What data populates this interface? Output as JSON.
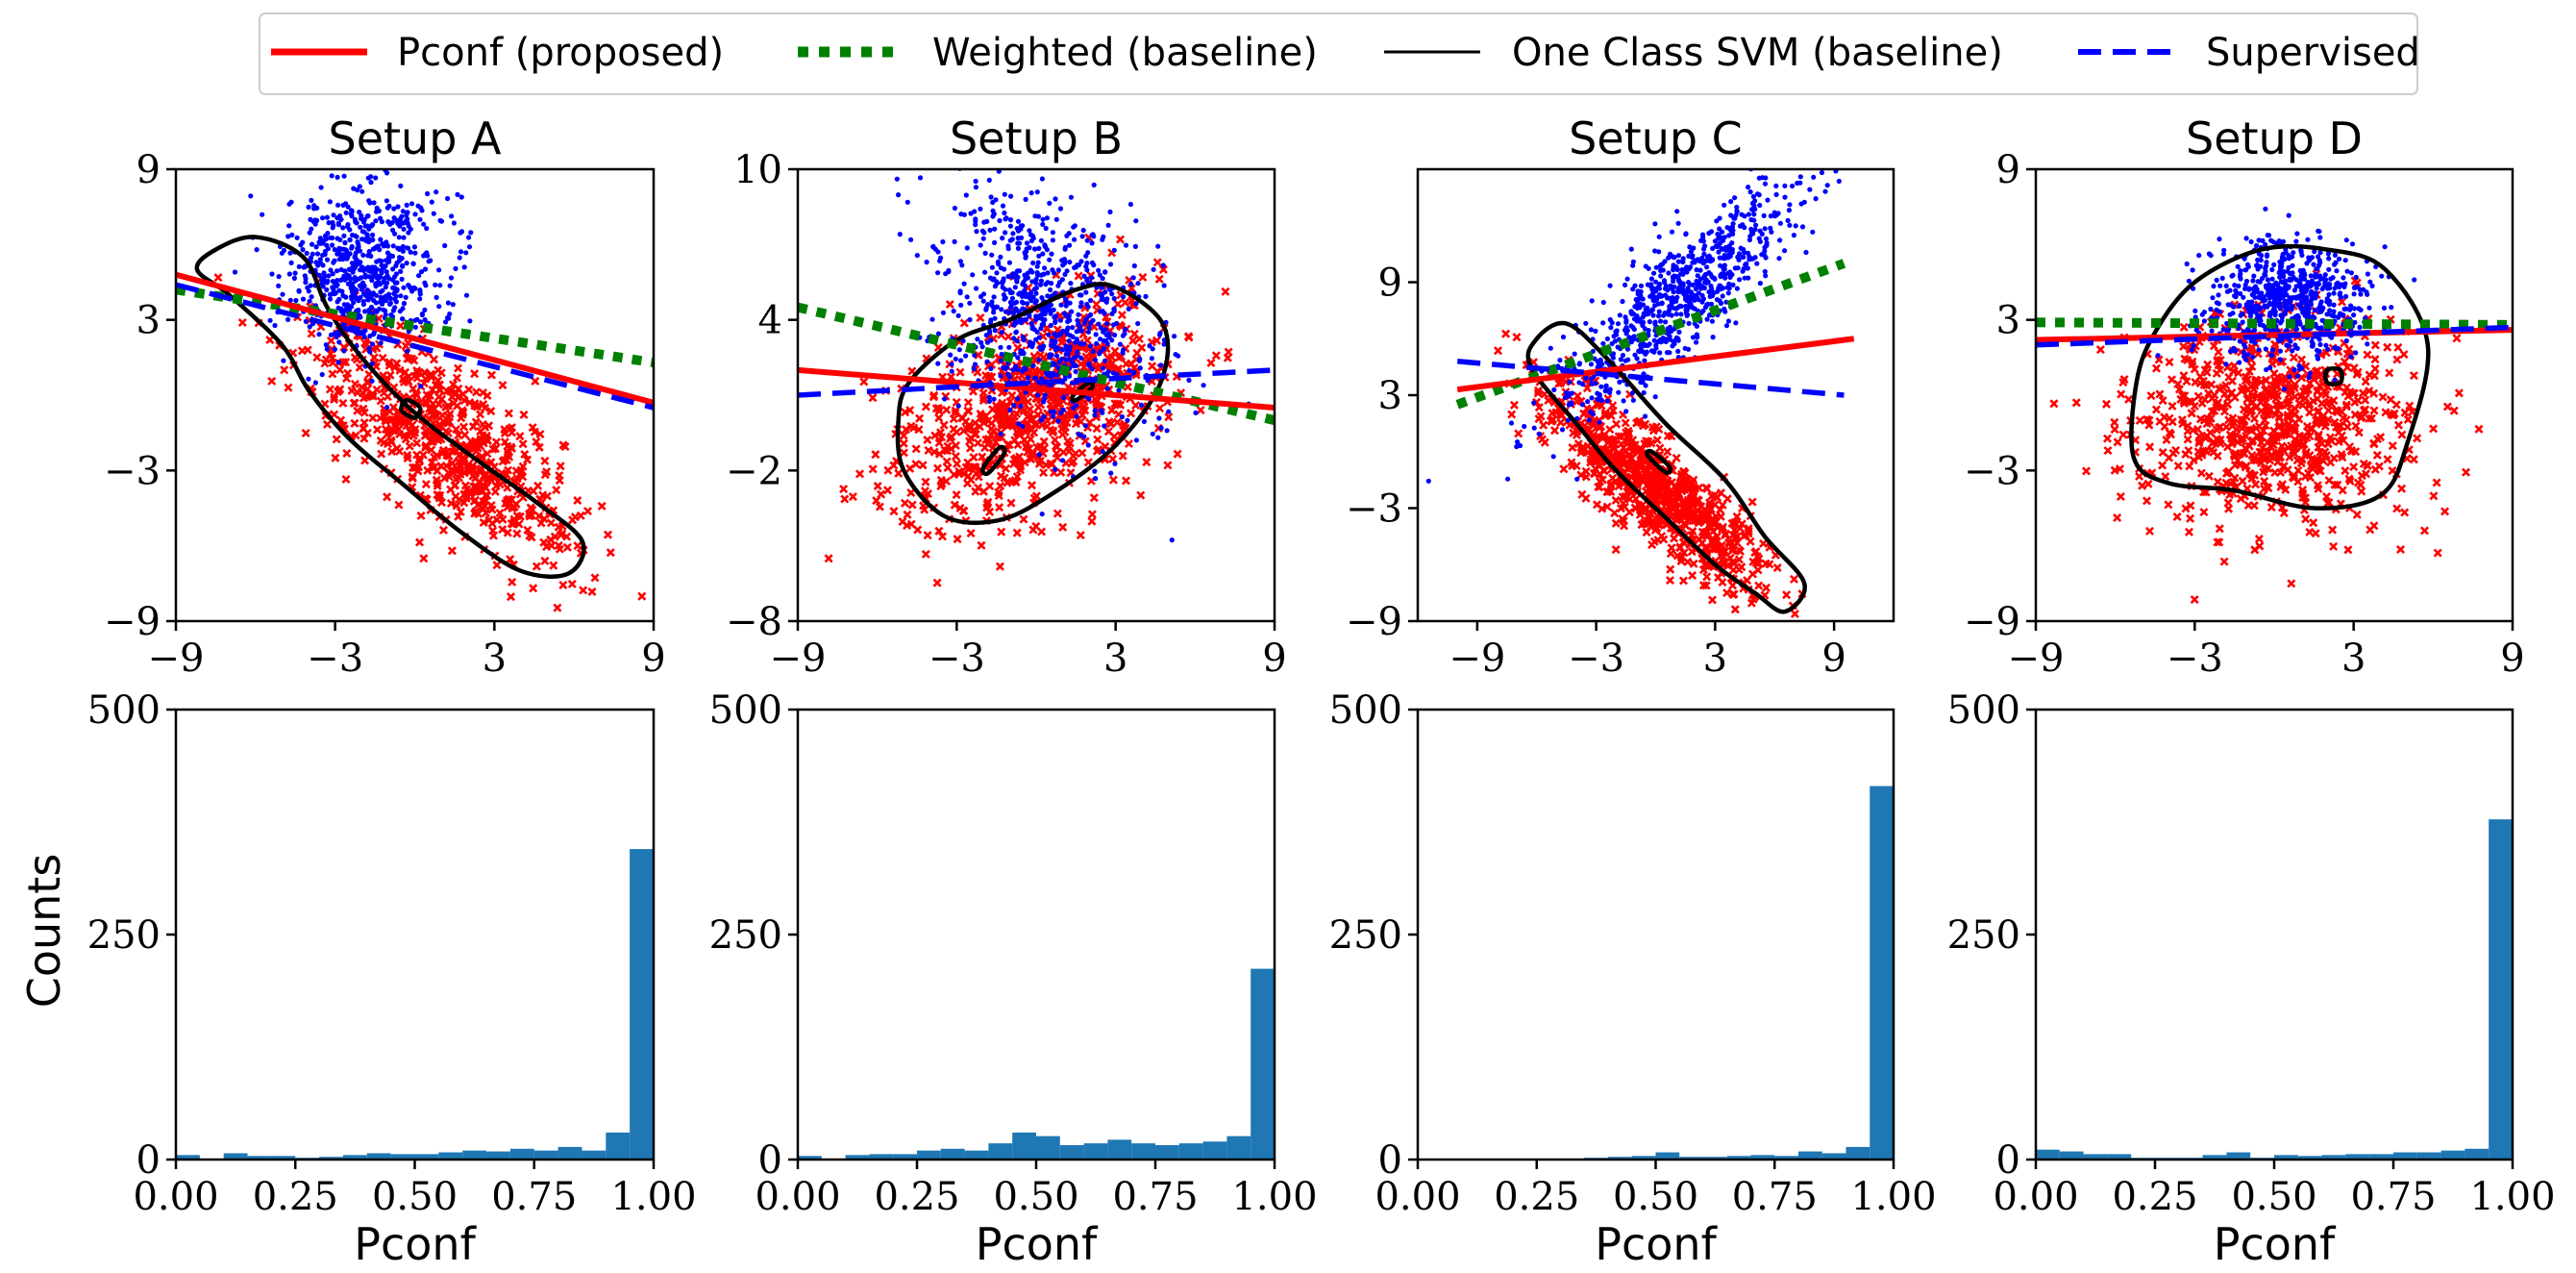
{
  "legend": {
    "items": [
      {
        "label": "Pconf (proposed)",
        "color": "#ff0000",
        "style": "solid"
      },
      {
        "label": "Weighted (baseline)",
        "color": "#008000",
        "style": "dotted"
      },
      {
        "label": "One Class SVM (baseline)",
        "color": "#000000",
        "style": "thin"
      },
      {
        "label": "Supervised",
        "color": "#0000ff",
        "style": "dashed"
      }
    ]
  },
  "colors": {
    "positive": "#0000ff",
    "negative": "#ff0000",
    "pconf": "#ff0000",
    "weighted": "#008000",
    "ocsvm": "#000000",
    "supervised": "#0000ff",
    "hist": "#1f77b4"
  },
  "chart_data": [
    {
      "type": "scatter",
      "title": "Setup A",
      "xlim": [
        -9,
        9
      ],
      "ylim": [
        -9,
        9
      ],
      "xticks": [
        -9,
        -3,
        3,
        9
      ],
      "xtick_labels": [
        "−9",
        "−3",
        "3",
        "9"
      ],
      "yticks": [
        -9,
        -3,
        3,
        9
      ],
      "ytick_labels": [
        "−9",
        "−3",
        "3",
        "9"
      ],
      "positive": {
        "mean": [
          -2.0,
          5.0
        ],
        "sd": [
          1.5,
          1.6
        ],
        "rho": 0.0,
        "n": 700
      },
      "negative": {
        "mean": [
          1.2,
          -1.8
        ],
        "sd": [
          2.5,
          2.5
        ],
        "rho": -0.75,
        "n": 700
      },
      "lines": {
        "pconf": [
          [
            -9,
            4.8
          ],
          [
            9,
            -0.3
          ]
        ],
        "weighted": [
          [
            -9,
            4.2
          ],
          [
            9,
            1.3
          ]
        ],
        "supervised": [
          [
            -9,
            4.4
          ],
          [
            9,
            -0.5
          ]
        ]
      },
      "ocsvm": [
        [
          [
            -7.5,
            5.8
          ],
          [
            -6.0,
            6.3
          ],
          [
            -4.2,
            5.5
          ],
          [
            -3.3,
            3.5
          ],
          [
            -2.0,
            1.5
          ],
          [
            0.0,
            -0.7
          ],
          [
            2.5,
            -2.7
          ],
          [
            4.5,
            -4.2
          ],
          [
            6.3,
            -5.8
          ],
          [
            5.8,
            -7.1
          ],
          [
            4.0,
            -7.0
          ],
          [
            1.8,
            -5.5
          ],
          [
            -0.5,
            -3.5
          ],
          [
            -2.5,
            -1.7
          ],
          [
            -4.0,
            0.2
          ],
          [
            -5.0,
            2.0
          ],
          [
            -7.0,
            4.0
          ],
          [
            -8.2,
            5.0
          ]
        ],
        [
          [
            -0.3,
            -0.2
          ],
          [
            0.2,
            -0.5
          ],
          [
            0.0,
            -0.9
          ],
          [
            -0.5,
            -0.6
          ]
        ]
      ]
    },
    {
      "type": "scatter",
      "title": "Setup B",
      "xlim": [
        -9,
        9
      ],
      "ylim": [
        -8,
        10
      ],
      "xticks": [
        -9,
        -3,
        3,
        9
      ],
      "xtick_labels": [
        "−9",
        "−3",
        "3",
        "9"
      ],
      "yticks": [
        -8,
        -2,
        4,
        10
      ],
      "ytick_labels": [
        "−8",
        "−2",
        "4",
        "10"
      ],
      "positive": {
        "mean": [
          0.5,
          4.3
        ],
        "sd": [
          2.0,
          2.4
        ],
        "rho": -0.3,
        "n": 800
      },
      "negative": {
        "mean": [
          0.0,
          0.4
        ],
        "sd": [
          2.5,
          2.3
        ],
        "rho": 0.5,
        "n": 800
      },
      "lines": {
        "pconf": [
          [
            -9,
            2.0
          ],
          [
            9,
            0.5
          ]
        ],
        "weighted": [
          [
            -9,
            4.5
          ],
          [
            9,
            0.0
          ]
        ],
        "supervised": [
          [
            -9,
            1.0
          ],
          [
            9,
            2.0
          ]
        ]
      },
      "ocsvm": [
        [
          [
            -4.8,
            1.5
          ],
          [
            -3.0,
            3.2
          ],
          [
            -1.0,
            4.0
          ],
          [
            1.5,
            5.2
          ],
          [
            3.0,
            5.3
          ],
          [
            4.8,
            3.8
          ],
          [
            4.7,
            1.5
          ],
          [
            3.0,
            -1.0
          ],
          [
            0.5,
            -3.0
          ],
          [
            -1.5,
            -4.0
          ],
          [
            -3.5,
            -3.8
          ],
          [
            -5.0,
            -2.0
          ],
          [
            -5.2,
            0.0
          ]
        ],
        [
          [
            -1.8,
            -2.1
          ],
          [
            -1.2,
            -1.3
          ],
          [
            -1.4,
            -1.1
          ],
          [
            -2.0,
            -1.9
          ]
        ],
        [
          [
            1.5,
            0.8
          ],
          [
            2.1,
            1.3
          ],
          [
            2.0,
            1.5
          ],
          [
            1.4,
            1.0
          ]
        ]
      ]
    },
    {
      "type": "scatter",
      "title": "Setup C",
      "xlim": [
        -12,
        12
      ],
      "ylim": [
        -9,
        15
      ],
      "xticks": [
        -9,
        -3,
        3,
        9
      ],
      "xtick_labels": [
        "−9",
        "−3",
        "3",
        "9"
      ],
      "yticks": [
        -9,
        -3,
        3,
        9
      ],
      "ytick_labels": [
        "−9",
        "−3",
        "3",
        "9"
      ],
      "positive": {
        "mean": [
          1.0,
          8.0
        ],
        "sd": [
          3.0,
          3.0
        ],
        "rho": 0.85,
        "n": 800
      },
      "negative": {
        "mean": [
          0.0,
          -2.0
        ],
        "sd": [
          2.7,
          2.7
        ],
        "rho": -0.85,
        "n": 800
      },
      "lines": {
        "pconf": [
          [
            -10,
            3.3
          ],
          [
            10,
            6.0
          ]
        ],
        "weighted": [
          [
            -10,
            2.5
          ],
          [
            9.5,
            10.0
          ]
        ],
        "supervised": [
          [
            -10,
            4.8
          ],
          [
            9.5,
            3.0
          ]
        ]
      },
      "ocsvm": [
        [
          [
            -6.0,
            6.0
          ],
          [
            -4.5,
            6.8
          ],
          [
            -2.5,
            5.0
          ],
          [
            0.5,
            1.5
          ],
          [
            3.5,
            -1.5
          ],
          [
            5.5,
            -4.5
          ],
          [
            7.5,
            -7.0
          ],
          [
            6.5,
            -8.5
          ],
          [
            5.0,
            -7.5
          ],
          [
            3.0,
            -6.0
          ],
          [
            0.5,
            -3.5
          ],
          [
            -2.0,
            -1.0
          ],
          [
            -4.0,
            1.5
          ],
          [
            -6.3,
            4.5
          ]
        ],
        [
          [
            -0.2,
            0.0
          ],
          [
            0.7,
            -0.8
          ],
          [
            0.5,
            -1.1
          ],
          [
            -0.4,
            -0.2
          ]
        ]
      ]
    },
    {
      "type": "scatter",
      "title": "Setup D",
      "xlim": [
        -9,
        9
      ],
      "ylim": [
        -9,
        9
      ],
      "xticks": [
        -9,
        -3,
        3,
        9
      ],
      "xtick_labels": [
        "−9",
        "−3",
        "3",
        "9"
      ],
      "yticks": [
        -9,
        -3,
        3,
        9
      ],
      "ytick_labels": [
        "−9",
        "−3",
        "3",
        "9"
      ],
      "positive": {
        "mean": [
          0.5,
          3.8
        ],
        "sd": [
          1.5,
          1.2
        ],
        "rho": 0.0,
        "n": 700
      },
      "negative": {
        "mean": [
          0.0,
          -1.0
        ],
        "sd": [
          2.7,
          2.0
        ],
        "rho": 0.0,
        "n": 800
      },
      "lines": {
        "pconf": [
          [
            -9,
            2.2
          ],
          [
            9,
            2.6
          ]
        ],
        "weighted": [
          [
            -9,
            2.9
          ],
          [
            9,
            2.8
          ]
        ],
        "supervised": [
          [
            -9,
            2.0
          ],
          [
            9,
            2.7
          ]
        ]
      },
      "ocsvm": [
        [
          [
            -4.5,
            2.5
          ],
          [
            -3.0,
            4.5
          ],
          [
            -0.5,
            5.8
          ],
          [
            2.0,
            5.8
          ],
          [
            4.2,
            5.0
          ],
          [
            5.8,
            2.0
          ],
          [
            5.0,
            -2.0
          ],
          [
            4.0,
            -4.0
          ],
          [
            1.5,
            -4.5
          ],
          [
            -1.5,
            -3.8
          ],
          [
            -4.0,
            -3.5
          ],
          [
            -5.3,
            -2.5
          ],
          [
            -5.2,
            0.5
          ]
        ],
        [
          [
            2.0,
            1.0
          ],
          [
            2.5,
            1.0
          ],
          [
            2.5,
            0.5
          ],
          [
            2.0,
            0.5
          ]
        ]
      ]
    },
    {
      "type": "bar",
      "subtype": "histogram",
      "xlabel": "Pconf",
      "ylabel": "Counts",
      "xlim": [
        0,
        1
      ],
      "ylim": [
        0,
        500
      ],
      "xtick_labels": [
        "0.00",
        "0.25",
        "0.50",
        "0.75",
        "1.00"
      ],
      "ytick_labels": [
        "0",
        "250",
        "500"
      ],
      "bins": 20,
      "values": [
        5,
        1,
        7,
        4,
        4,
        2,
        3,
        5,
        7,
        6,
        6,
        8,
        10,
        9,
        12,
        10,
        14,
        10,
        30,
        345
      ]
    },
    {
      "type": "bar",
      "subtype": "histogram",
      "xlabel": "Pconf",
      "ylabel": "",
      "xlim": [
        0,
        1
      ],
      "ylim": [
        0,
        500
      ],
      "xtick_labels": [
        "0.00",
        "0.25",
        "0.50",
        "0.75",
        "1.00"
      ],
      "ytick_labels": [
        "0",
        "250",
        "500"
      ],
      "bins": 20,
      "values": [
        4,
        1,
        5,
        6,
        6,
        10,
        12,
        10,
        18,
        30,
        26,
        16,
        18,
        22,
        18,
        16,
        18,
        20,
        26,
        212
      ]
    },
    {
      "type": "bar",
      "subtype": "histogram",
      "xlabel": "Pconf",
      "ylabel": "",
      "xlim": [
        0,
        1
      ],
      "ylim": [
        0,
        500
      ],
      "xtick_labels": [
        "0.00",
        "0.25",
        "0.50",
        "0.75",
        "1.00"
      ],
      "ytick_labels": [
        "0",
        "250",
        "500"
      ],
      "bins": 20,
      "values": [
        0,
        0,
        0,
        0,
        0,
        0,
        0,
        2,
        3,
        4,
        8,
        3,
        3,
        4,
        5,
        4,
        9,
        7,
        14,
        415
      ]
    },
    {
      "type": "bar",
      "subtype": "histogram",
      "xlabel": "Pconf",
      "ylabel": "",
      "xlim": [
        0,
        1
      ],
      "ylim": [
        0,
        500
      ],
      "xtick_labels": [
        "0.00",
        "0.25",
        "0.50",
        "0.75",
        "1.00"
      ],
      "ytick_labels": [
        "0",
        "250",
        "500"
      ],
      "bins": 20,
      "values": [
        11,
        9,
        6,
        6,
        2,
        2,
        2,
        5,
        8,
        2,
        5,
        4,
        5,
        6,
        6,
        8,
        8,
        10,
        12,
        378
      ]
    }
  ]
}
